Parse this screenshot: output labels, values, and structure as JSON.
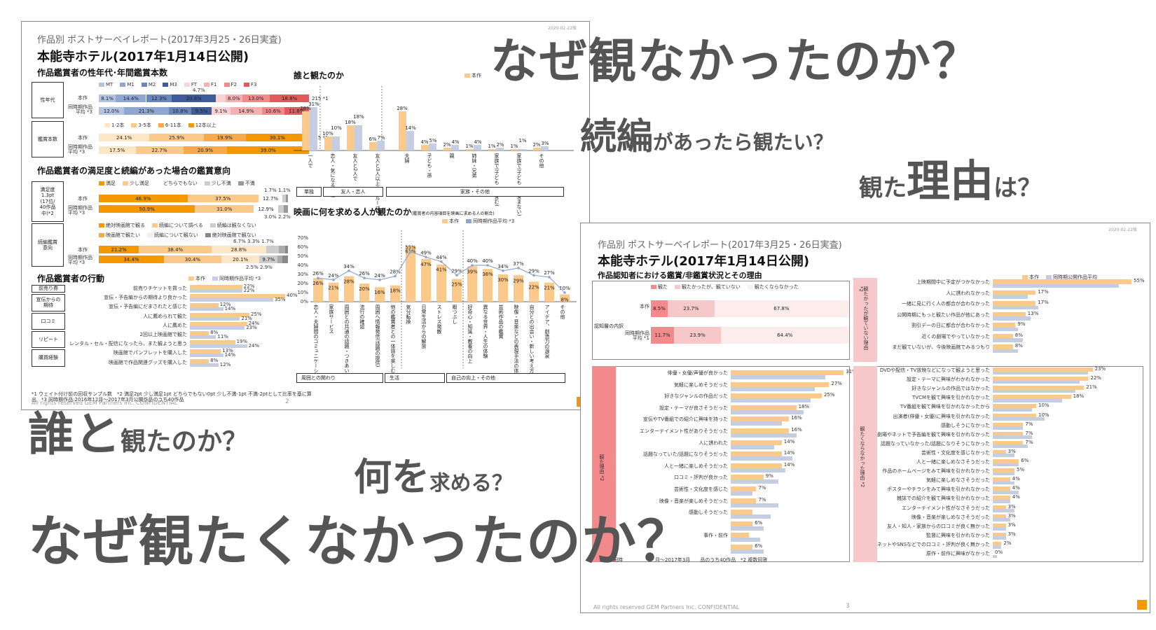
{
  "slide1": {
    "date": "2020-02-22版",
    "supertitle": "作品別 ポストサーベイレポート(2017年3月25・26日実査)",
    "title": "本能寺ホテル(2017年1月14日公開)",
    "sec_demo": "作品鑑賞者の性年代･年間鑑賞本数",
    "demo_legend": [
      "MT",
      "M1",
      "M2",
      "M3",
      "FT",
      "F1",
      "F2",
      "F3"
    ],
    "row_sei": "性年代",
    "row_honsaku": "本作",
    "row_doji": "同時期作品\n平均 *3",
    "sei_honsaku": [
      "8.1%",
      "14.4%",
      "12.3%",
      "20.8%",
      "8.0%",
      "13.0%",
      "18.8%"
    ],
    "sei_honsaku_above": "4.7%",
    "sei_n": "215 *1",
    "sei_doji": [
      "12.0%",
      "21.3%",
      "10.8%",
      "9.5%",
      "9.1%",
      "14.9%",
      "10.6%",
      "11.8%"
    ],
    "kan_legend": [
      "1-2本",
      "3-5本",
      "6-11本",
      "12本以上"
    ],
    "row_kan": "鑑賞本数",
    "kan_honsaku": [
      "24.1%",
      "25.9%",
      "19.9%",
      "30.1%"
    ],
    "kan_n": "215 *1",
    "kan_doji": [
      "17.5%",
      "22.7%",
      "20.9%",
      "39.0%"
    ],
    "sec_sat": "作品鑑賞者の満足度と続編があった場合の鑑賞意向",
    "sat_legend": [
      "満足",
      "少し満足",
      "どちらでもない",
      "少し不満",
      "不満"
    ],
    "row_sat": "満足度\n1.3pt\n(17位/\n40作品\n中)*2",
    "sat_top": "1.7% 1.1%",
    "sat_honsaku": [
      "46.9%",
      "37.5%",
      "12.7%"
    ],
    "sat_doji": [
      "50.9%",
      "31.0%",
      "12.9%"
    ],
    "sat_doji_under": "3.0% 2.2%",
    "seq_legend": [
      "絶対映画館で観る",
      "続編について調べる",
      "続編は観なくない",
      "映画館で観たい",
      "続編について観ない",
      "絶対映画館で観ない"
    ],
    "row_seq": "続編鑑賞\n意向",
    "seq_top": "6.7% 3.3% 1.7%",
    "seq_honsaku": [
      "21.2%",
      "38.4%",
      "28.8%"
    ],
    "seq_doji": [
      "34.4%",
      "30.4%",
      "20.1%",
      "9.7%"
    ],
    "seq_doji_under": "2.5% 2.9%",
    "sec_act": "作品鑑賞者の行動",
    "act_legend": [
      "本作",
      "同時期作品平均 *3"
    ],
    "act_groups": [
      "前売り券",
      "宣伝からの\n期待",
      "口コミ",
      "リピート",
      "購買経験"
    ],
    "act_items": [
      {
        "label": "前売りチケットを買った",
        "a": "22%",
        "b": "22%",
        "va": 22,
        "vb": 22
      },
      {
        "label": "宣伝・予告編からの期待より良かった",
        "a": "40%",
        "b": "35%",
        "va": 40,
        "vb": 35
      },
      {
        "label": "宣伝・予告編にだまされたと感じた",
        "a": "12%",
        "b": "14%",
        "va": 12,
        "vb": 14
      },
      {
        "label": "人に薦められて観た",
        "a": "25%",
        "b": "21%",
        "va": 25,
        "vb": 21
      },
      {
        "label": "人に薦めた",
        "a": "24%",
        "b": "23%",
        "va": 24,
        "vb": 23
      },
      {
        "label": "2回以上映画館で観た",
        "a": "8%",
        "b": "11%",
        "va": 8,
        "vb": 11
      },
      {
        "label": "レンタル・セル・配信になったら、また観ようと思う",
        "a": "19%",
        "b": "24%",
        "va": 19,
        "vb": 24
      },
      {
        "label": "映画館でパンフレットを購入した",
        "a": "13%",
        "b": "14%",
        "va": 13,
        "vb": 14
      },
      {
        "label": "映画館で作品関連グッズを購入した",
        "a": "8%",
        "b": "12%",
        "va": 8,
        "vb": 12
      }
    ],
    "sec_who": "誰と観たのか",
    "who_legend": "本作",
    "who_items": [
      {
        "label": "一人で",
        "a": "28%",
        "b": "31%",
        "va": 28,
        "vb": 31
      },
      {
        "label": "恋人・気になる異性",
        "a": "10%",
        "b": "10%",
        "va": 10,
        "vb": 10
      },
      {
        "label": "友人と2人で",
        "a": "18%",
        "b": "18%",
        "va": 18,
        "vb": 18
      },
      {
        "label": "友人と3人以上のグループで",
        "a": "6%",
        "b": "7%",
        "va": 6,
        "vb": 7
      },
      {
        "label": "夫婦",
        "a": "28%",
        "b": "14%",
        "va": 28,
        "vb": 14
      },
      {
        "label": "子ども・孫",
        "a": "4%",
        "b": "5%",
        "va": 4,
        "vb": 5
      },
      {
        "label": "親",
        "a": "2%",
        "b": "4%",
        "va": 2,
        "vb": 4
      },
      {
        "label": "姉妹・兄弟",
        "a": "1%",
        "b": "4%",
        "va": 1,
        "vb": 4
      },
      {
        "label": "家族で(子ども・孫含む)",
        "a": "1%",
        "b": "2%",
        "va": 1,
        "vb": 2
      },
      {
        "label": "家族で(子ども・孫含まない)",
        "a": "1%",
        "b": "1%",
        "va": 1,
        "vb": 1
      },
      {
        "label": "その他",
        "a": "2%",
        "b": "3%",
        "va": 2,
        "vb": 3
      }
    ],
    "who_groups": [
      "単独",
      "友人・恋人",
      "家族・その他"
    ],
    "sec_what": "映画に何を求める人が観たのか",
    "sec_what_note": "(鑑賞者の内容項目を映画に求める人の割合)",
    "what_legend": [
      "本作",
      "同時期作品平均 *3"
    ],
    "what_yticks": [
      "70%",
      "60%",
      "50%",
      "40%",
      "30%",
      "20%",
      "10%",
      "0%"
    ],
    "what_items": [
      {
        "label": "恋人・夫婦間のコミュニケーション",
        "a": "26%",
        "b": "26%",
        "va": 26,
        "vb": 26
      },
      {
        "label": "家族サービス",
        "a": "21%",
        "b": "24%",
        "va": 21,
        "vb": 24
      },
      {
        "label": "周囲との共通の話題・つきあい",
        "a": "28%",
        "b": "34%",
        "va": 28,
        "vb": 34
      },
      {
        "label": "流行の確認",
        "a": "20%",
        "b": "26%",
        "va": 20,
        "vb": 26
      },
      {
        "label": "周囲へ情報発信(話題の提供)",
        "a": "16%",
        "b": "24%",
        "va": 16,
        "vb": 24
      },
      {
        "label": "他の鑑賞者との一体感を楽しむもの",
        "a": "18%",
        "b": "28%",
        "va": 18,
        "vb": 28
      },
      {
        "label": "気分転換",
        "a": "61%",
        "b": "55%",
        "va": 61,
        "vb": 55
      },
      {
        "label": "日常生活からの解放",
        "a": "47%",
        "b": "49%",
        "va": 47,
        "vb": 49
      },
      {
        "label": "ストレス発散",
        "a": "41%",
        "b": "44%",
        "va": 41,
        "vb": 44
      },
      {
        "label": "暇つぶし",
        "a": "25%",
        "b": "29%",
        "va": 25,
        "vb": 29
      },
      {
        "label": "好奇心・知識・教養の向上",
        "a": "39%",
        "b": "40%",
        "va": 39,
        "vb": 40
      },
      {
        "label": "異なる世界・人生の体験",
        "a": "36%",
        "b": "40%",
        "va": 36,
        "vb": 40
      },
      {
        "label": "芸術作品の鑑賞",
        "a": "30%",
        "b": "34%",
        "va": 30,
        "vb": 34
      },
      {
        "label": "映像・音楽などの表現手法の体験",
        "a": "29%",
        "b": "37%",
        "va": 29,
        "vb": 37
      },
      {
        "label": "自分との出会い・新しい考え方",
        "a": "22%",
        "b": "29%",
        "va": 22,
        "vb": 29
      },
      {
        "label": "アイデア、創造力の源泉",
        "a": "21%",
        "b": "27%",
        "va": 21,
        "vb": 27
      },
      {
        "label": "その他",
        "a": "8%",
        "b": "10%",
        "va": 8,
        "vb": 10
      }
    ],
    "what_groups": [
      "周囲との関わり",
      "生活",
      "自己の向上・その他"
    ],
    "footnotes": "*1 ウェイト付け前の回収サンプル数　*2 満足2pt 少し満足1pt どちらでもない0pt 少し不満-1pt 不満-2ptとして比率を基に算出　*3 同時期作品:2016年12月〜2017年3月公開作品のうち40作品",
    "footer": "All rights reserved GEM Partners Inc. CONFIDENTIAL",
    "page": "2"
  },
  "slide2": {
    "date": "2020-02-22版",
    "supertitle": "作品別 ポストサーベイレポート(2017年3月25・26日実査)",
    "title": "本能寺ホテル(2017年1月14日公開)",
    "sec": "作品認知者における鑑賞/非鑑賞状況とその理由",
    "legend": [
      "本作",
      "同時期公開作品平均"
    ],
    "aware_legend": [
      "観た",
      "観たかったが、観ていない",
      "観たくならなかった"
    ],
    "aware_label": "認知層の内訳",
    "aware_rows": [
      {
        "label": "本作",
        "vals": [
          "8.5%",
          "23.7%",
          "67.8%"
        ],
        "nums": [
          8.5,
          23.7,
          67.8
        ]
      },
      {
        "label": "同時期作品\n平均 *1",
        "vals": [
          "11.7%",
          "23.9%",
          "64.4%"
        ],
        "nums": [
          11.7,
          23.9,
          64.4
        ]
      }
    ],
    "notwatch_label": "観たかったが観ていない理由 *2",
    "notwatch_items": [
      {
        "label": "上映期間中に予定がつかなかった",
        "a": "55%",
        "va": 55,
        "vb": 50
      },
      {
        "label": "人に誘われなかった",
        "a": "17%",
        "va": 17,
        "vb": 14
      },
      {
        "label": "一緒に見に行く人の都合が合わなかった",
        "a": "17%",
        "va": 17,
        "vb": 18
      },
      {
        "label": "公開時期にもっと観たい作品が他にあった",
        "a": "13%",
        "va": 13,
        "vb": 15
      },
      {
        "label": "割引デーの日に都合が合わなかった",
        "a": "9%",
        "va": 9,
        "vb": 10
      },
      {
        "label": "近くの劇場でやっていなかった",
        "a": "8%",
        "va": 8,
        "vb": 12
      },
      {
        "label": "まだ観ていないが、今後映画館でみるつもり",
        "a": "8%",
        "va": 8,
        "vb": 10
      }
    ],
    "watch_label": "観た理由 *2",
    "watch_items": [
      {
        "label": "俳優・女優/声優が良かった",
        "a": "31%",
        "va": 31,
        "vb": 26
      },
      {
        "label": "気軽に楽しめそうだった",
        "a": "27%",
        "va": 27,
        "vb": 23
      },
      {
        "label": "好きなジャンルの作品だった",
        "a": "25%",
        "va": 25,
        "vb": 22
      },
      {
        "label": "設定・テーマが良さそうだった",
        "a": "18%",
        "va": 18,
        "vb": 20
      },
      {
        "label": "宣伝やTV番組での紹介に興味を持った",
        "a": "16%",
        "va": 16,
        "vb": 14
      },
      {
        "label": "エンターテイメント性がありそうだった",
        "a": "16%",
        "va": 16,
        "vb": 18
      },
      {
        "label": "人に誘われた",
        "a": "14%",
        "va": 14,
        "vb": 12
      },
      {
        "label": "話題なっていた/話題になりそうだった",
        "a": "14%",
        "va": 14,
        "vb": 17
      },
      {
        "label": "人と一緒に楽しめそうだった",
        "a": "14%",
        "va": 14,
        "vb": 15
      },
      {
        "label": "口コミ・評判が良かった",
        "a": "9%",
        "va": 9,
        "vb": 13
      },
      {
        "label": "芸術性・文化度を感じた",
        "a": "7%",
        "va": 7,
        "vb": 6
      },
      {
        "label": "映像・音楽が楽しめそうだった",
        "a": "7%",
        "va": 7,
        "vb": 13
      },
      {
        "label": "感動しそうだった",
        "a": "",
        "va": 6,
        "vb": 11
      },
      {
        "label": "",
        "a": "6%",
        "va": 6,
        "vb": 9
      },
      {
        "label": "事作・前作",
        "a": "",
        "va": 5,
        "vb": 8
      },
      {
        "label": "",
        "a": "6%",
        "va": 6,
        "vb": 9
      }
    ],
    "watch_note": "月〜2017年3月　　品のうち40作品　*2 複数回答",
    "watch_note_left": "*1 同時",
    "dont_label": "観たくならなかった理由 *2",
    "dont_items": [
      {
        "label": "DVDや配信・TV放映などになって観ようと思った",
        "a": "23%",
        "va": 23,
        "vb": 22
      },
      {
        "label": "設定・テーマに興味がわかれなかった",
        "a": "22%",
        "va": 22,
        "vb": 20
      },
      {
        "label": "好きなジャンルの作品ではなかった",
        "a": "21%",
        "va": 21,
        "vb": 19
      },
      {
        "label": "TVCMを観て興味を引かれなかった",
        "a": "18%",
        "va": 18,
        "vb": 16
      },
      {
        "label": "TV番組を観て興味を引かれなかったから",
        "a": "10%",
        "va": 10,
        "vb": 9
      },
      {
        "label": "出演者(俳優・女優)に興味を引かれなかった",
        "a": "10%",
        "va": 10,
        "vb": 12
      },
      {
        "label": "感動しそうになかった",
        "a": "7%",
        "va": 7,
        "vb": 7
      },
      {
        "label": "劇場やネットで予告編を観て興味を引かれなかった",
        "a": "7%",
        "va": 7,
        "vb": 9
      },
      {
        "label": "話題なっていなかった/話題になりそうになかった",
        "a": "7%",
        "va": 7,
        "vb": 8
      },
      {
        "label": "芸術性・文化度を感じなかった",
        "a": "3%",
        "va": 3,
        "vb": 5
      },
      {
        "label": "人と一緒に楽しめなさそうだった",
        "a": "6%",
        "va": 6,
        "vb": 6
      },
      {
        "label": "作品のホームページをみて興味を引かれなかった",
        "a": "5%",
        "va": 5,
        "vb": 5
      },
      {
        "label": "気軽に楽しめなさそうだった",
        "a": "4%",
        "va": 4,
        "vb": 5
      },
      {
        "label": "ポスターやチラシをみて興味を引かれなかった",
        "a": "4%",
        "va": 4,
        "vb": 6
      },
      {
        "label": "雑誌での紹介を観て興味を引かれなかった",
        "a": "4%",
        "va": 4,
        "vb": 4
      },
      {
        "label": "エンターテイメント性がなさそうだった",
        "a": "3%",
        "va": 3,
        "vb": 5
      },
      {
        "label": "映像・音楽が楽しめなさそうだった",
        "a": "3%",
        "va": 3,
        "vb": 4
      },
      {
        "label": "友人・知人・家族からの口コミが良く無かった",
        "a": "3%",
        "va": 3,
        "vb": 3
      },
      {
        "label": "監督に興味を引かれなかった",
        "a": "3%",
        "va": 3,
        "vb": 3
      },
      {
        "label": "ネットやSNSなどでの口コミ・評判が良く無かった",
        "a": "2%",
        "va": 2,
        "vb": 2
      },
      {
        "label": "原作・前作に興味がなかった",
        "a": "0%",
        "va": 0,
        "vb": 1
      }
    ],
    "footer": "All rights reserved GEM Partners Inc. CONFIDENTIAL",
    "page": "3"
  },
  "overlay": {
    "q1": "なぜ観なかったのか？",
    "q2_big": "続編",
    "q2_small": "があったら観たい？",
    "q3_a": "観た",
    "q3_big": "理由",
    "q3_small": "は？",
    "q4_big": "誰と",
    "q4_small": "観たのか？",
    "q5_a": "何を",
    "q5_small": "求める？",
    "q6": "なぜ観たくなかったのか？"
  },
  "colors": {
    "orange": "#f39800",
    "light_orange": "#fbd3a2",
    "blue_gray": "#c5cde0",
    "navy": "#4d6aa0",
    "pink": "#f28a8c",
    "light_pink": "#f6c8c9"
  }
}
